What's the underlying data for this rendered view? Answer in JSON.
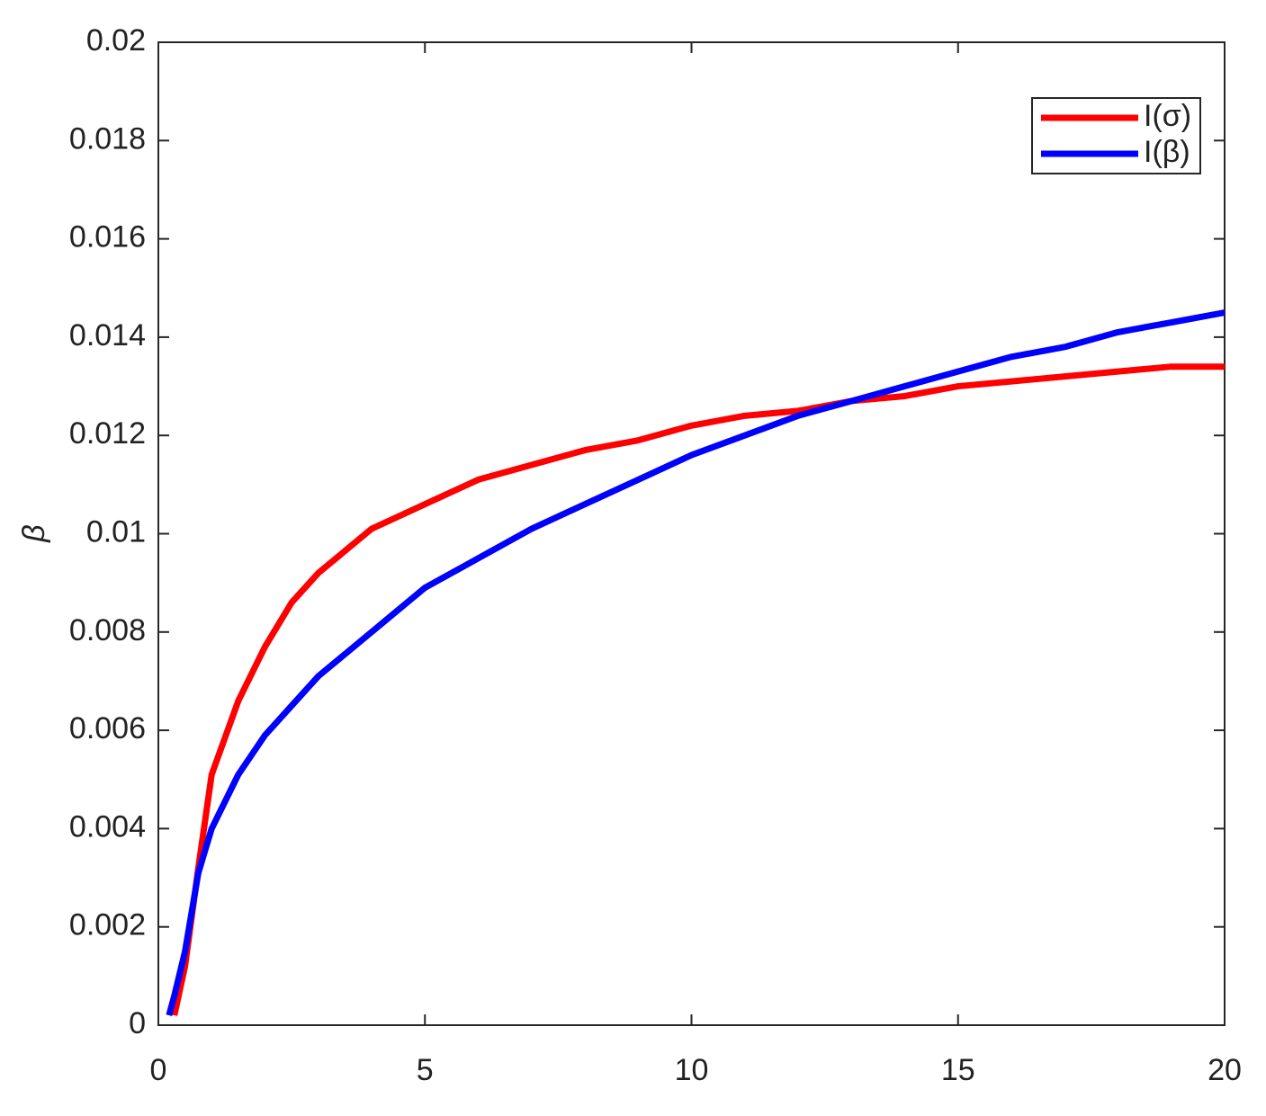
{
  "chart_data": {
    "type": "line",
    "ylabel": "β",
    "x": [
      0.2,
      0.3,
      0.5,
      0.75,
      1,
      1.5,
      2,
      2.5,
      3,
      4,
      5,
      6,
      7,
      8,
      9,
      10,
      11,
      12,
      13,
      14,
      15,
      16,
      17,
      18,
      19,
      20
    ],
    "series": [
      {
        "name": "I(σ)",
        "color": "#ff0000",
        "values": [
          null,
          0.0002,
          0.0012,
          0.0032,
          0.0051,
          0.0066,
          0.0077,
          0.0086,
          0.0092,
          0.0101,
          0.0106,
          0.0111,
          0.0114,
          0.0117,
          0.0119,
          0.0122,
          0.0124,
          0.0125,
          0.0127,
          0.0128,
          0.013,
          0.0131,
          0.0132,
          0.0133,
          0.0134,
          0.0134
        ]
      },
      {
        "name": "I(β)",
        "color": "#0000ff",
        "values": [
          0.0002,
          0.0006,
          0.0015,
          0.0031,
          0.004,
          0.0051,
          0.0059,
          0.0065,
          0.0071,
          0.008,
          0.0089,
          0.0095,
          0.0101,
          0.0106,
          0.0111,
          0.0116,
          0.012,
          0.0124,
          0.0127,
          0.013,
          0.0133,
          0.0136,
          0.0138,
          0.0141,
          0.0143,
          0.0145
        ]
      }
    ],
    "xlim": [
      0,
      20
    ],
    "xticks": [
      0,
      5,
      10,
      15,
      20
    ],
    "ylim": [
      0,
      0.02
    ],
    "yticks": [
      0,
      0.002,
      0.004,
      0.006,
      0.008,
      0.01,
      0.012,
      0.014,
      0.016,
      0.018,
      0.02
    ],
    "legend": "upper-right",
    "grid": false
  }
}
